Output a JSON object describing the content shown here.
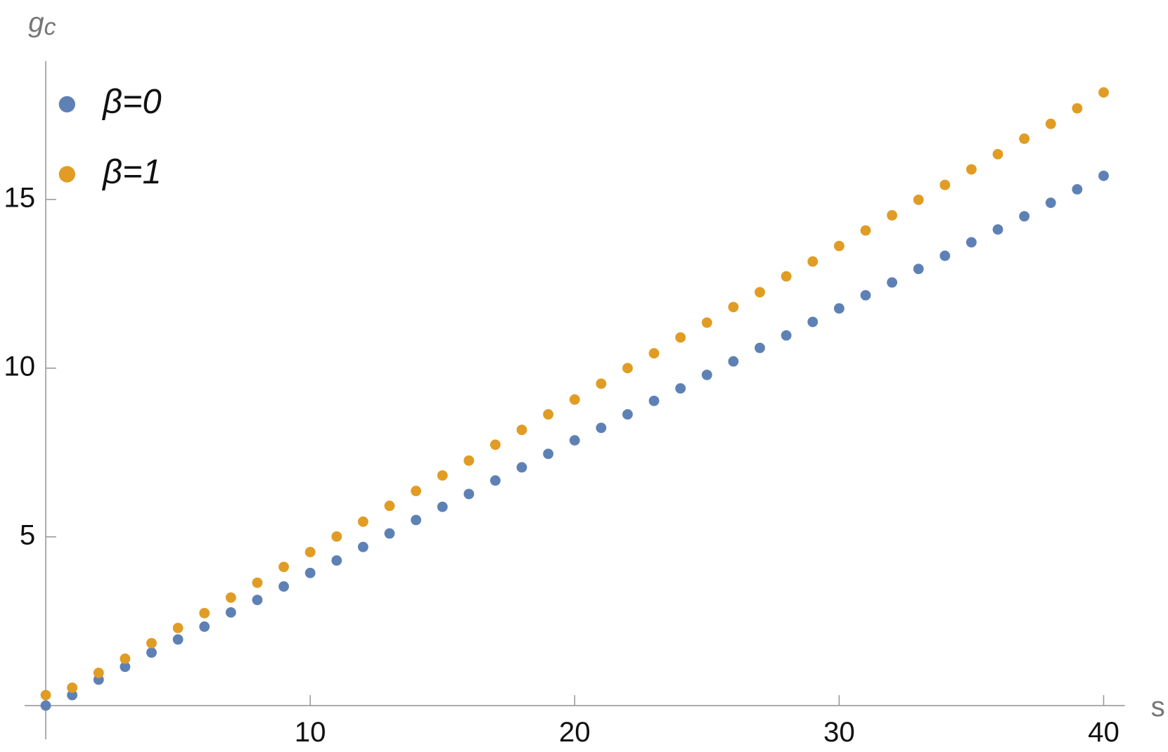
{
  "chart_data": {
    "type": "scatter",
    "x_label": "s",
    "y_label": {
      "symbol": "g",
      "subscript": "c"
    },
    "x": [
      0,
      1,
      2,
      3,
      4,
      5,
      6,
      7,
      8,
      9,
      10,
      11,
      12,
      13,
      14,
      15,
      16,
      17,
      18,
      19,
      20,
      21,
      22,
      23,
      24,
      25,
      26,
      27,
      28,
      29,
      30,
      31,
      32,
      33,
      34,
      35,
      36,
      37,
      38,
      39,
      40
    ],
    "series": [
      {
        "name": "β=0",
        "color": "#5e81b5",
        "values": [
          0,
          0.31,
          0.77,
          1.15,
          1.57,
          1.96,
          2.34,
          2.76,
          3.13,
          3.53,
          3.93,
          4.3,
          4.7,
          5.1,
          5.5,
          5.89,
          6.27,
          6.67,
          7.06,
          7.46,
          7.86,
          8.23,
          8.63,
          9.03,
          9.4,
          9.8,
          10.2,
          10.6,
          10.97,
          11.37,
          11.77,
          12.16,
          12.54,
          12.94,
          13.33,
          13.73,
          14.11,
          14.5,
          14.9,
          15.3,
          15.7
        ]
      },
      {
        "name": "β=1",
        "color": "#e19c24",
        "values": [
          0.31,
          0.53,
          0.97,
          1.39,
          1.85,
          2.3,
          2.74,
          3.2,
          3.64,
          4.11,
          4.55,
          5.01,
          5.45,
          5.92,
          6.36,
          6.82,
          7.26,
          7.73,
          8.17,
          8.63,
          9.07,
          9.54,
          10,
          10.44,
          10.91,
          11.35,
          11.81,
          12.25,
          12.72,
          13.16,
          13.62,
          14.08,
          14.53,
          14.99,
          15.43,
          15.89,
          16.34,
          16.8,
          17.24,
          17.7,
          18.17
        ]
      }
    ],
    "xlim": [
      -0.8,
      40.8
    ],
    "ylim": [
      -1,
      19.1
    ],
    "xticks": [
      10,
      20,
      30,
      40
    ],
    "yticks": [
      5,
      10,
      15
    ],
    "legend": "upper-left"
  }
}
